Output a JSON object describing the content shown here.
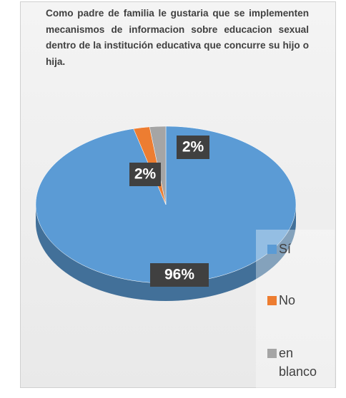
{
  "chart_data": {
    "type": "pie",
    "title": "Como padre de familia le gustaria que se implementen mecanismos de informacion sobre educacion sexual dentro de la institución educativa que concurre su hijo o hija.",
    "categories": [
      "Sí",
      "No",
      "en blanco"
    ],
    "values": [
      96,
      2,
      2
    ],
    "value_labels": [
      "96%",
      "2%",
      "2%"
    ],
    "colors": [
      "#5b9bd5",
      "#ed7d31",
      "#a5a5a5"
    ],
    "legend": "right"
  }
}
